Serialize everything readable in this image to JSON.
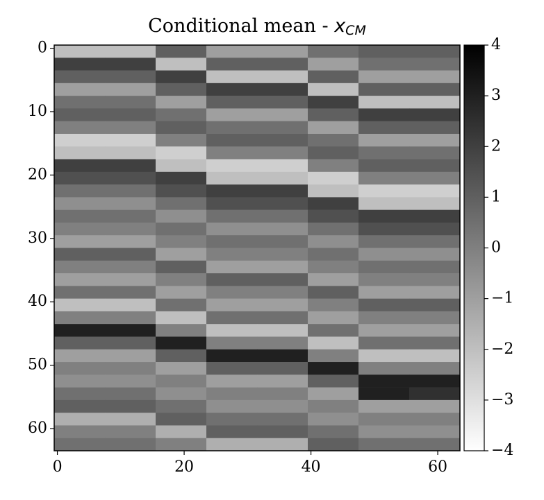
{
  "chart_data": {
    "type": "heatmap",
    "title": "Conditional mean -",
    "title_symbol": "x",
    "title_subscript": "CM",
    "x": [
      0,
      8,
      16,
      24,
      32,
      40,
      48,
      56
    ],
    "y": [
      0,
      2,
      4,
      6,
      8,
      10,
      12,
      14,
      16,
      18,
      20,
      22,
      24,
      26,
      28,
      30,
      32,
      34,
      36,
      38,
      40,
      42,
      44,
      46,
      48,
      50,
      52,
      54,
      56,
      58,
      60,
      62
    ],
    "values": [
      [
        -2,
        -2,
        1,
        -1,
        -1,
        0.5,
        1,
        1
      ],
      [
        2,
        2,
        -2,
        1,
        1,
        -1,
        0.5,
        0.5
      ],
      [
        1,
        1,
        2,
        -2,
        -2,
        1,
        -1,
        -1
      ],
      [
        -1,
        -1,
        1,
        2,
        2,
        -2,
        1,
        1
      ],
      [
        0.5,
        0.5,
        -1,
        1,
        1,
        2,
        -2,
        -2
      ],
      [
        1,
        1,
        0.5,
        -1,
        -1,
        1,
        2,
        2
      ],
      [
        0,
        0,
        1,
        0.5,
        0.5,
        -1,
        1,
        1
      ],
      [
        -2.5,
        -2.5,
        0,
        1,
        1,
        0.5,
        -1,
        -1
      ],
      [
        -2,
        -2,
        -2.5,
        0,
        0,
        1,
        0.5,
        0.5
      ],
      [
        2,
        2,
        -2,
        -2.5,
        -2.5,
        0,
        1,
        1
      ],
      [
        1.5,
        1.5,
        2,
        -2,
        -2,
        -2.5,
        0,
        0
      ],
      [
        0.5,
        0.5,
        1.5,
        2,
        2,
        -2,
        -2.5,
        -2.5
      ],
      [
        -0.5,
        -0.5,
        0.5,
        1.5,
        1.5,
        2,
        -2,
        -2
      ],
      [
        0.5,
        0.5,
        -0.5,
        0.5,
        0.5,
        1.5,
        2,
        2
      ],
      [
        0,
        0,
        0.5,
        -0.5,
        -0.5,
        0.5,
        1.5,
        1.5
      ],
      [
        -1,
        -1,
        0,
        0.5,
        0.5,
        -0.5,
        0.5,
        0.5
      ],
      [
        1,
        1,
        -1,
        0,
        0,
        0.5,
        -0.5,
        -0.5
      ],
      [
        0,
        0,
        1,
        -1,
        -1,
        0,
        0.5,
        0.5
      ],
      [
        -1,
        -1,
        0,
        1,
        1,
        -1,
        0,
        0
      ],
      [
        0.5,
        0.5,
        -1,
        0,
        0,
        1,
        -1,
        -1
      ],
      [
        -2,
        -2,
        0.5,
        -1,
        -1,
        0,
        1,
        1
      ],
      [
        0,
        0,
        -2,
        0.5,
        0.5,
        -1,
        0,
        0
      ],
      [
        3,
        3,
        0,
        -2,
        -2,
        0.5,
        -1,
        -1
      ],
      [
        1,
        1,
        3,
        0,
        0,
        -2,
        0.5,
        0.5
      ],
      [
        -1,
        -1,
        1,
        3,
        3,
        0,
        -2,
        -2
      ],
      [
        0,
        0,
        -1,
        1,
        1,
        3,
        0,
        0
      ],
      [
        -0.5,
        -0.5,
        0,
        -1,
        -1,
        1,
        3,
        3
      ],
      [
        0.5,
        0.5,
        -0.5,
        0,
        0,
        -1,
        3,
        2.5
      ],
      [
        1,
        1,
        0.5,
        -0.5,
        -0.5,
        0,
        -1,
        -1
      ],
      [
        -1.5,
        -1.5,
        1,
        0.5,
        0.5,
        -0.5,
        0,
        0
      ],
      [
        0,
        0,
        -1.5,
        1,
        1,
        0.5,
        -0.5,
        -0.5
      ],
      [
        0.5,
        0.5,
        0,
        -1.5,
        -1.5,
        1,
        0.5,
        0.5
      ]
    ],
    "xlim": [
      -0.5,
      63.5
    ],
    "ylim": [
      63.5,
      -0.5
    ],
    "xticks": [
      0,
      20,
      40,
      60
    ],
    "yticks": [
      0,
      10,
      20,
      30,
      40,
      50,
      60
    ],
    "zlim": [
      -4,
      4
    ],
    "zticks": [
      {
        "value": -4,
        "label": "−4"
      },
      {
        "value": -3,
        "label": "−3"
      },
      {
        "value": -2,
        "label": "−2"
      },
      {
        "value": -1,
        "label": "−1"
      },
      0,
      1,
      2,
      3,
      4
    ],
    "colors": [
      "#ffffff",
      "#000000"
    ]
  }
}
